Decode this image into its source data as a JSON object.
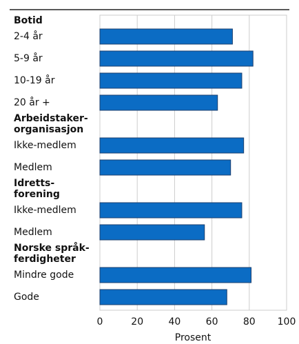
{
  "chart_data": {
    "type": "bar",
    "orientation": "horizontal",
    "color": "#0b6cc4",
    "groups": [
      {
        "name": [
          "Botid"
        ],
        "categories": [
          "2-4 år",
          "5-9 år",
          "10-19 år",
          "20 år +"
        ],
        "values": [
          71,
          82,
          76,
          63
        ]
      },
      {
        "name": [
          "Arbeidstaker-",
          "organisasjon"
        ],
        "categories": [
          "Ikke-medlem",
          "Medlem"
        ],
        "values": [
          77,
          70
        ]
      },
      {
        "name": [
          "Idretts-",
          "forening"
        ],
        "categories": [
          "Ikke-medlem",
          "Medlem"
        ],
        "values": [
          76,
          56
        ]
      },
      {
        "name": [
          "Norske språk-",
          "ferdigheter"
        ],
        "categories": [
          "Mindre gode",
          "Gode"
        ],
        "values": [
          81,
          68
        ]
      }
    ],
    "xlim": [
      0,
      100
    ],
    "xticks": [
      0,
      20,
      40,
      60,
      80,
      100
    ],
    "xlabel": "Prosent",
    "grid": true
  }
}
